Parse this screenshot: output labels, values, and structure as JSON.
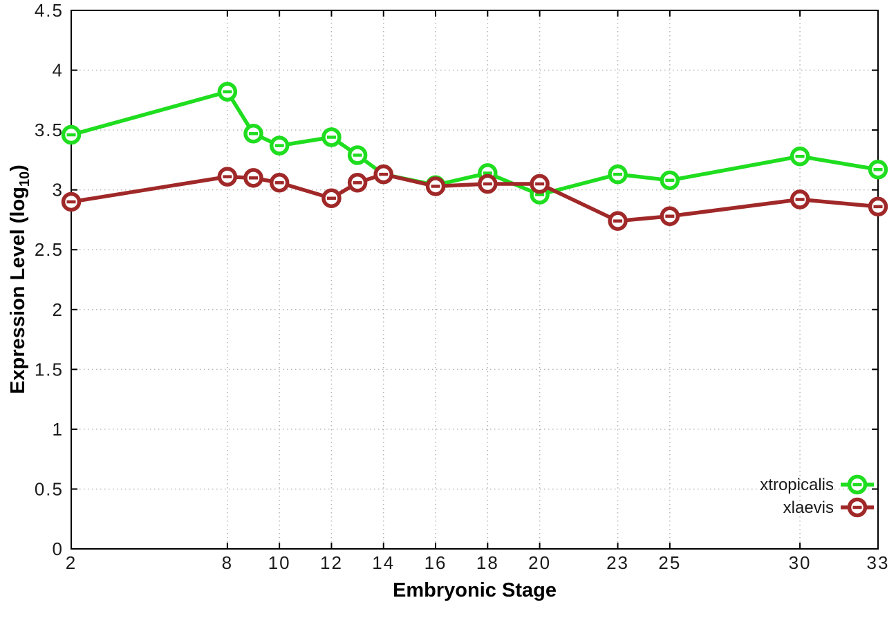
{
  "figure": {
    "background_color": "#ffffff",
    "border_color": "#000000",
    "grid_color": "#b6b6b6",
    "tick_label_color": "#1a1a1a",
    "marker_fill_color": "#ffffff"
  },
  "chart_data": {
    "type": "line",
    "title": "",
    "xlabel": "Embryonic Stage",
    "ylabel": "Expression Level (log10)",
    "ylabel_parts": {
      "main": "Expression Level (log",
      "sub": "10",
      "suffix": ")"
    },
    "xlim": [
      2,
      33
    ],
    "ylim": [
      0,
      4.5
    ],
    "x_ticks": [
      2,
      8,
      10,
      12,
      14,
      16,
      18,
      20,
      23,
      25,
      30,
      33
    ],
    "y_ticks": [
      0,
      0.5,
      1,
      1.5,
      2,
      2.5,
      3,
      3.5,
      4,
      4.5
    ],
    "grid": true,
    "legend_position": "bottom-right",
    "x": [
      2,
      8,
      9,
      10,
      12,
      13,
      14,
      16,
      18,
      20,
      23,
      25,
      30,
      33
    ],
    "series": [
      {
        "name": "xtropicalis",
        "color": "#1fdd1f",
        "values": [
          3.46,
          3.82,
          3.47,
          3.37,
          3.44,
          3.29,
          3.13,
          3.04,
          3.14,
          2.96,
          3.13,
          3.08,
          3.28,
          3.17
        ]
      },
      {
        "name": "xlaevis",
        "color": "#a02828",
        "values": [
          2.9,
          3.11,
          3.1,
          3.06,
          2.93,
          3.06,
          3.13,
          3.03,
          3.05,
          3.05,
          2.74,
          2.78,
          2.92,
          2.86
        ]
      }
    ]
  }
}
